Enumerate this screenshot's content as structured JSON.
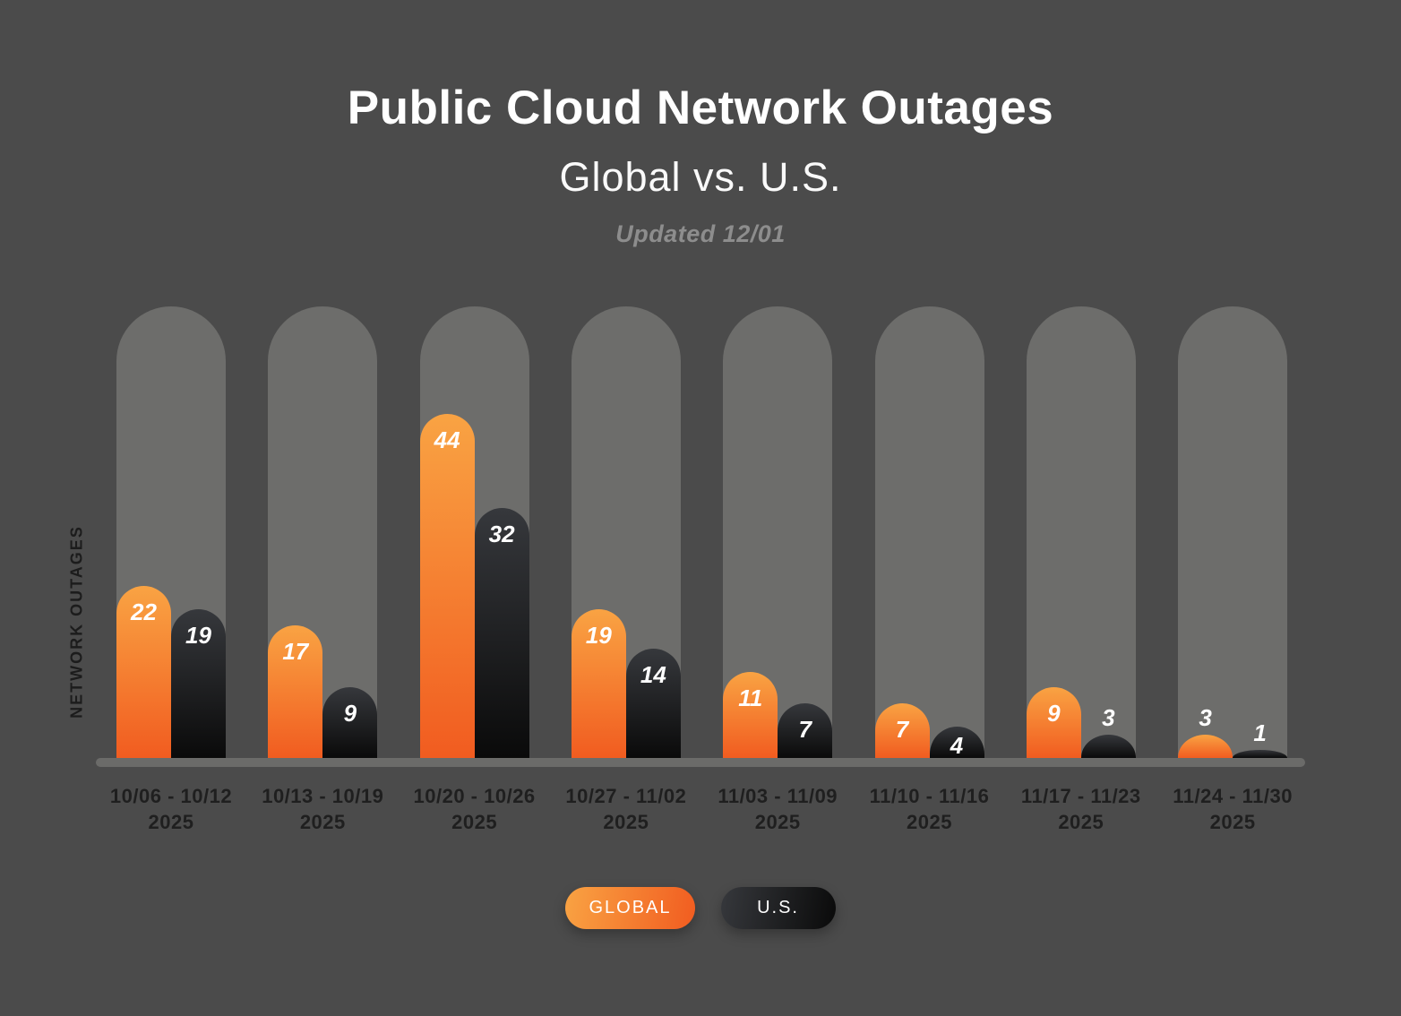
{
  "header": {
    "title": "Public Cloud Network Outages",
    "subtitle": "Global vs. U.S.",
    "updated": "Updated 12/01"
  },
  "colors": {
    "background": "#4b4b4b",
    "track": "#6d6d6b",
    "axis_line": "#6b6b69",
    "global_top": "#f9a343",
    "global_bottom": "#f15c20",
    "us_top": "#36383c",
    "us_bottom": "#0a0a0a",
    "value_text": "#ffffff",
    "category_text": "#1f1f1f"
  },
  "chart_data": {
    "type": "bar",
    "title": "Public Cloud Network Outages",
    "subtitle": "Global vs. U.S.",
    "note": "Updated 12/01",
    "xlabel": "",
    "ylabel": "NETWORK OUTAGES",
    "ylim": [
      0,
      58
    ],
    "grid": false,
    "legend_position": "bottom",
    "categories": [
      {
        "range": "10/06 - 10/12",
        "year": "2025"
      },
      {
        "range": "10/13 - 10/19",
        "year": "2025"
      },
      {
        "range": "10/20 - 10/26",
        "year": "2025"
      },
      {
        "range": "10/27 - 11/02",
        "year": "2025"
      },
      {
        "range": "11/03 - 11/09",
        "year": "2025"
      },
      {
        "range": "11/10 - 11/16",
        "year": "2025"
      },
      {
        "range": "11/17 - 11/23",
        "year": "2025"
      },
      {
        "range": "11/24 - 11/30",
        "year": "2025"
      }
    ],
    "series": [
      {
        "name": "GLOBAL",
        "key": "global",
        "values": [
          22,
          17,
          44,
          19,
          11,
          7,
          9,
          3
        ]
      },
      {
        "name": "U.S.",
        "key": "us",
        "values": [
          19,
          9,
          32,
          14,
          7,
          4,
          3,
          1
        ]
      }
    ]
  }
}
